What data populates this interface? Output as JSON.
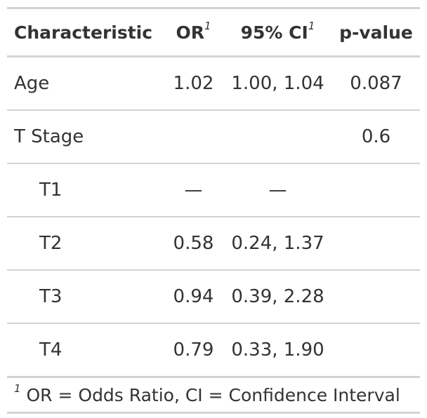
{
  "table": {
    "headers": {
      "characteristic": "Characteristic",
      "or": "OR",
      "or_footnote_mark": "1",
      "ci": "95% CI",
      "ci_footnote_mark": "1",
      "pvalue": "p-value"
    },
    "rows": [
      {
        "label": "Age",
        "or": "1.02",
        "ci": "1.00, 1.04",
        "p": "0.087",
        "indent": false
      },
      {
        "label": "T Stage",
        "or": "",
        "ci": "",
        "p": "0.6",
        "indent": false
      },
      {
        "label": "T1",
        "or": "—",
        "ci": "—",
        "p": "",
        "indent": true
      },
      {
        "label": "T2",
        "or": "0.58",
        "ci": "0.24, 1.37",
        "p": "",
        "indent": true
      },
      {
        "label": "T3",
        "or": "0.94",
        "ci": "0.39, 2.28",
        "p": "",
        "indent": true
      },
      {
        "label": "T4",
        "or": "0.79",
        "ci": "0.33, 1.90",
        "p": "",
        "indent": true
      }
    ],
    "footnote": {
      "mark": "1",
      "text": "OR = Odds Ratio, CI = Confidence Interval"
    }
  },
  "colors": {
    "text": "#333333",
    "rule": "#d3d3d3",
    "background": "#ffffff"
  }
}
